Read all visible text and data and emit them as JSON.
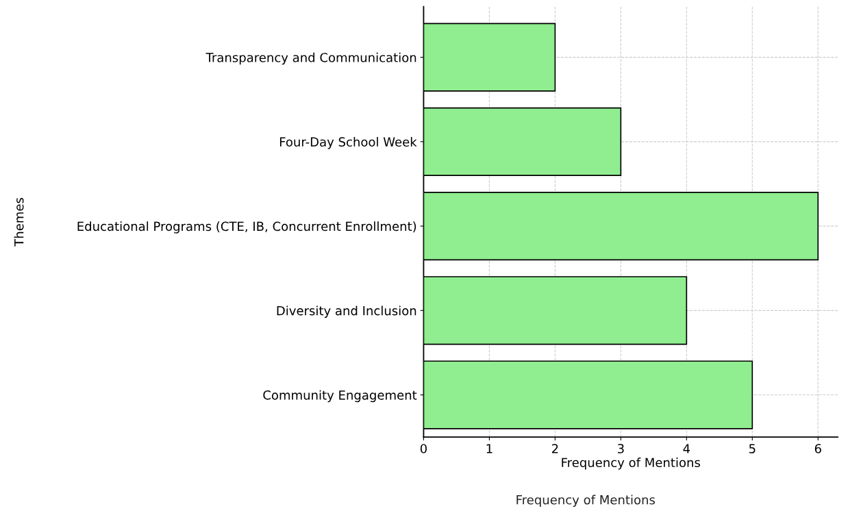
{
  "chart_data": {
    "type": "bar",
    "orientation": "horizontal",
    "categories": [
      "Transparency and Communication",
      "Four-Day School Week",
      "Educational Programs (CTE, IB, Concurrent Enrollment)",
      "Diversity and Inclusion",
      "Community Engagement"
    ],
    "values": [
      2,
      3,
      6,
      4,
      5
    ],
    "color": "#90ee90",
    "xlabel": "Frequency of Mentions",
    "ylabel": "Themes",
    "xlim": [
      0,
      6.3
    ],
    "xticks": [
      0,
      1,
      2,
      3,
      4,
      5,
      6
    ],
    "grid": true,
    "annotations": [
      "Frequency of Mentions"
    ]
  }
}
